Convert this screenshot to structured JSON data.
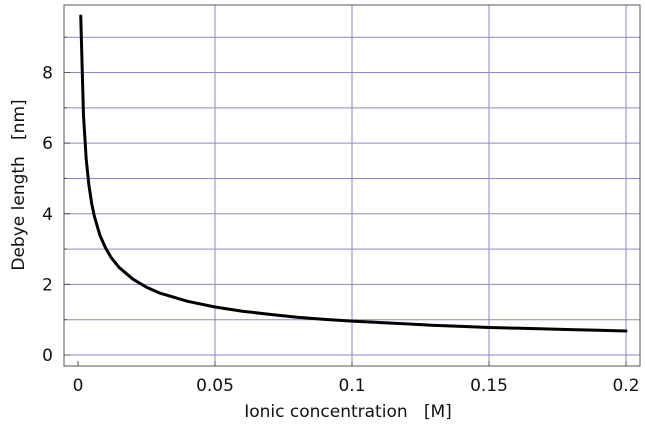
{
  "chart_data": {
    "type": "line",
    "title": "",
    "xlabel": "Ionic concentration   [M]",
    "ylabel": "Debye length   [nm]",
    "xlim": [
      0,
      0.2
    ],
    "ylim": [
      0,
      9.6
    ],
    "x_ticks": [
      0,
      0.05,
      0.1,
      0.15,
      0.2
    ],
    "x_tick_labels": [
      "0",
      "0.05",
      "0.1",
      "0.15",
      "0.2"
    ],
    "y_ticks": [
      0,
      2,
      4,
      6,
      8
    ],
    "y_tick_labels": [
      "0",
      "2",
      "4",
      "6",
      "8"
    ],
    "y_minor_gridlines": [
      1,
      3,
      5,
      7,
      9
    ],
    "grid": true,
    "legend": "none",
    "series": [
      {
        "x": [
          0.001,
          0.002,
          0.003,
          0.004,
          0.005,
          0.006,
          0.008,
          0.01,
          0.012,
          0.015,
          0.02,
          0.025,
          0.03,
          0.04,
          0.05,
          0.06,
          0.07,
          0.08,
          0.09,
          0.1,
          0.11,
          0.12,
          0.13,
          0.14,
          0.15,
          0.16,
          0.17,
          0.18,
          0.19,
          0.2
        ],
        "y": [
          9.6,
          6.79,
          5.54,
          4.8,
          4.29,
          3.92,
          3.39,
          3.04,
          2.77,
          2.48,
          2.15,
          1.92,
          1.75,
          1.52,
          1.36,
          1.24,
          1.15,
          1.07,
          1.01,
          0.96,
          0.92,
          0.88,
          0.84,
          0.81,
          0.78,
          0.76,
          0.74,
          0.72,
          0.7,
          0.68
        ]
      }
    ],
    "colors": {
      "line": "#000000",
      "grid": "#8a8ac6",
      "frame": "#555555"
    }
  }
}
